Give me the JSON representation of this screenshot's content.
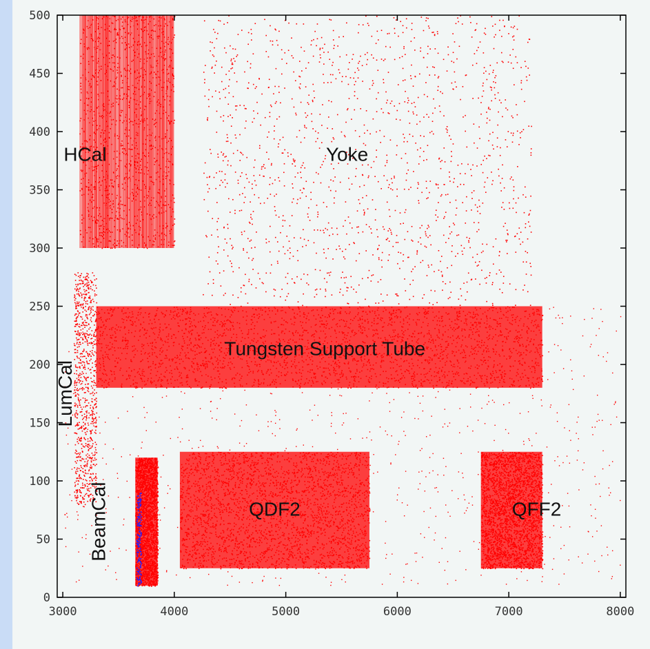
{
  "chart_data": {
    "type": "scatter",
    "title": "",
    "xlabel": "",
    "ylabel": "",
    "xlim": [
      2950,
      8050
    ],
    "ylim": [
      0,
      500
    ],
    "grid": false,
    "point_color": "#ff0000",
    "secondary_point_color": "#2222ff",
    "x_ticks": [
      {
        "value": 3000,
        "label": "3000"
      },
      {
        "value": 4000,
        "label": "4000"
      },
      {
        "value": 5000,
        "label": "5000"
      },
      {
        "value": 6000,
        "label": "6000"
      },
      {
        "value": 7000,
        "label": "7000"
      },
      {
        "value": 8000,
        "label": "8000"
      }
    ],
    "y_ticks": [
      {
        "value": 0,
        "label": "0"
      },
      {
        "value": 50,
        "label": "50"
      },
      {
        "value": 100,
        "label": "100"
      },
      {
        "value": 150,
        "label": "150"
      },
      {
        "value": 200,
        "label": "200"
      },
      {
        "value": 250,
        "label": "250"
      },
      {
        "value": 300,
        "label": "300"
      },
      {
        "value": 350,
        "label": "350"
      },
      {
        "value": 400,
        "label": "400"
      },
      {
        "value": 450,
        "label": "450"
      },
      {
        "value": 500,
        "label": "500"
      }
    ],
    "regions": [
      {
        "name": "hcal",
        "label": "HCal",
        "x_range": [
          3150,
          4000
        ],
        "y_range": [
          300,
          500
        ],
        "density": "striped",
        "label_at": [
          3200,
          375
        ],
        "rotated": false
      },
      {
        "name": "yoke",
        "label": "Yoke",
        "x_range": [
          4250,
          7200
        ],
        "y_range": [
          250,
          500
        ],
        "density": "sparse",
        "label_at": [
          5550,
          375
        ],
        "rotated": false
      },
      {
        "name": "tungsten-support-tube",
        "label": "Tungsten Support Tube",
        "x_range": [
          3300,
          7300
        ],
        "y_range": [
          180,
          250
        ],
        "density": "dense",
        "label_at": [
          5350,
          208
        ],
        "rotated": false
      },
      {
        "name": "lumcal",
        "label": "LumCal",
        "x_range": [
          3100,
          3300
        ],
        "y_range": [
          80,
          280
        ],
        "density": "medium",
        "label_at": [
          3080,
          175
        ],
        "rotated": true
      },
      {
        "name": "beamcal",
        "label": "BeamCal",
        "x_range": [
          3650,
          3850
        ],
        "y_range": [
          10,
          120
        ],
        "density": "dense",
        "label_at": [
          3380,
          65
        ],
        "rotated": true
      },
      {
        "name": "qdf2",
        "label": "QDF2",
        "x_range": [
          4050,
          5750
        ],
        "y_range": [
          25,
          125
        ],
        "density": "dense",
        "label_at": [
          4900,
          70
        ],
        "rotated": false
      },
      {
        "name": "qff2",
        "label": "QFF2",
        "x_range": [
          6750,
          7300
        ],
        "y_range": [
          25,
          125
        ],
        "density": "dense",
        "label_at": [
          7250,
          70
        ],
        "rotated": false
      }
    ]
  }
}
